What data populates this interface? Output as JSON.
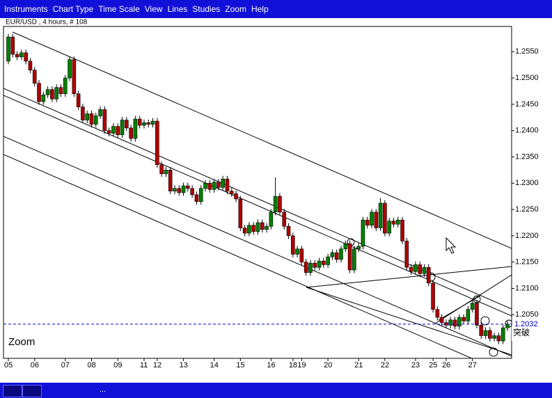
{
  "menu": [
    "Instruments",
    "Chart Type",
    "Time Scale",
    "View",
    "Lines",
    "Studies",
    "Zoom",
    "Help"
  ],
  "status_text": "...",
  "chart_data": {
    "type": "candlestick",
    "title": "EUR/USD , 4 hours, # 108",
    "annotations": [
      "Zoom",
      "突破"
    ],
    "up_color": "#008000",
    "down_color": "#b00000",
    "current_price": 1.2032,
    "ylim": [
      1.1967,
      1.2598
    ],
    "yticks": [
      {
        "value": 1.205,
        "label": "1.2050"
      },
      {
        "value": 1.21,
        "label": "1.2100"
      },
      {
        "value": 1.215,
        "label": "1.2150"
      },
      {
        "value": 1.22,
        "label": "1.2200"
      },
      {
        "value": 1.225,
        "label": "1.2250"
      },
      {
        "value": 1.23,
        "label": "1.2300"
      },
      {
        "value": 1.235,
        "label": "1.2350"
      },
      {
        "value": 1.24,
        "label": "1.2400"
      },
      {
        "value": 1.245,
        "label": "1.2450"
      },
      {
        "value": 1.25,
        "label": "1.2500"
      },
      {
        "value": 1.255,
        "label": "1.2550"
      }
    ],
    "categories": [
      "05",
      null,
      null,
      null,
      null,
      null,
      "06",
      null,
      null,
      null,
      null,
      null,
      null,
      "07",
      null,
      null,
      null,
      null,
      null,
      "08",
      null,
      null,
      null,
      null,
      null,
      "09",
      null,
      null,
      null,
      null,
      null,
      "11",
      null,
      null,
      "12",
      null,
      null,
      null,
      null,
      null,
      "13",
      null,
      null,
      null,
      null,
      null,
      null,
      "14",
      null,
      null,
      null,
      null,
      null,
      "15",
      null,
      null,
      null,
      null,
      null,
      null,
      "16",
      null,
      null,
      null,
      null,
      "18",
      null,
      "19",
      null,
      null,
      null,
      null,
      null,
      "20",
      null,
      null,
      null,
      null,
      null,
      null,
      "21",
      null,
      null,
      null,
      null,
      null,
      "22",
      null,
      null,
      null,
      null,
      null,
      null,
      "23",
      null,
      null,
      null,
      "25",
      null,
      null,
      "26",
      null,
      null,
      null,
      null,
      null,
      "27",
      null,
      null,
      null,
      null,
      null,
      null,
      null,
      null
    ],
    "open": [
      1.2532,
      1.2578,
      1.2545,
      1.254,
      1.2548,
      1.2532,
      1.2515,
      1.249,
      1.2455,
      1.2468,
      1.2478,
      1.246,
      1.2482,
      1.247,
      1.25,
      1.2535,
      1.247,
      1.2445,
      1.242,
      1.2432,
      1.2412,
      1.2428,
      1.244,
      1.24,
      1.2395,
      1.2408,
      1.2392,
      1.242,
      1.2405,
      1.2385,
      1.2422,
      1.241,
      1.2415,
      1.2412,
      1.2418,
      1.2335,
      1.2318,
      1.2325,
      1.2285,
      1.229,
      1.2282,
      1.2295,
      1.229,
      1.2278,
      1.2265,
      1.229,
      1.23,
      1.2288,
      1.2302,
      1.2292,
      1.2308,
      1.2285,
      1.228,
      1.227,
      1.2215,
      1.2205,
      1.222,
      1.2208,
      1.2225,
      1.2212,
      1.2218,
      1.2245,
      1.2275,
      1.2245,
      1.2218,
      1.22,
      1.2165,
      1.2175,
      1.215,
      1.213,
      1.2148,
      1.214,
      1.2152,
      1.2145,
      1.216,
      1.2168,
      1.2155,
      1.2175,
      1.2185,
      1.2135,
      1.2175,
      1.218,
      1.223,
      1.222,
      1.2245,
      1.2215,
      1.2262,
      1.2205,
      1.2228,
      1.2222,
      1.223,
      1.219,
      1.214,
      1.2132,
      1.2145,
      1.2128,
      1.214,
      1.211,
      1.206,
      1.2045,
      1.2035,
      1.203,
      1.204,
      1.2028,
      1.2045,
      1.2038,
      1.206,
      1.2072,
      1.203,
      1.201,
      1.202,
      1.2005,
      1.201,
      1.2,
      1.2025
    ],
    "high": [
      1.2584,
      1.2584,
      1.2551,
      1.2554,
      1.2554,
      1.2538,
      1.2521,
      1.2496,
      1.2474,
      1.2484,
      1.2484,
      1.2488,
      1.2488,
      1.2506,
      1.2541,
      1.2541,
      1.2476,
      1.2451,
      1.2438,
      1.2438,
      1.2434,
      1.2446,
      1.2446,
      1.2406,
      1.2414,
      1.2414,
      1.2426,
      1.2426,
      1.2411,
      1.2428,
      1.2428,
      1.2421,
      1.2421,
      1.2424,
      1.2424,
      1.2341,
      1.2331,
      1.2331,
      1.2296,
      1.2296,
      1.2301,
      1.2301,
      1.2296,
      1.2284,
      1.2296,
      1.2306,
      1.2306,
      1.2308,
      1.2308,
      1.2314,
      1.2314,
      1.2291,
      1.2286,
      1.2276,
      1.2221,
      1.2226,
      1.2226,
      1.2231,
      1.2231,
      1.2224,
      1.2251,
      1.2311,
      1.2281,
      1.2251,
      1.2224,
      1.2206,
      1.2181,
      1.2181,
      1.2156,
      1.2154,
      1.2154,
      1.2158,
      1.2158,
      1.2166,
      1.2174,
      1.2174,
      1.2181,
      1.2191,
      1.2191,
      1.2181,
      1.2186,
      1.2236,
      1.2236,
      1.2251,
      1.2251,
      1.2272,
      1.2268,
      1.2234,
      1.2234,
      1.2236,
      1.2236,
      1.2196,
      1.2146,
      1.2151,
      1.2151,
      1.2146,
      1.2146,
      1.2116,
      1.2066,
      1.2051,
      1.2041,
      1.2046,
      1.2046,
      1.2051,
      1.2051,
      1.2066,
      1.2078,
      1.2078,
      1.2036,
      1.2026,
      1.2026,
      1.2016,
      1.2016,
      1.2031,
      1.2038
    ],
    "low": [
      1.2526,
      1.2539,
      1.2534,
      1.2534,
      1.2526,
      1.2509,
      1.2484,
      1.2449,
      1.2449,
      1.2462,
      1.2454,
      1.2454,
      1.2464,
      1.2464,
      1.2494,
      1.2464,
      1.2439,
      1.2414,
      1.2414,
      1.2406,
      1.2406,
      1.2422,
      1.2394,
      1.2389,
      1.2389,
      1.2386,
      1.2386,
      1.2399,
      1.2379,
      1.2379,
      1.2404,
      1.2404,
      1.2406,
      1.2406,
      1.2329,
      1.2312,
      1.2312,
      1.2279,
      1.2279,
      1.2276,
      1.2276,
      1.2284,
      1.2272,
      1.2259,
      1.2259,
      1.2284,
      1.2282,
      1.2282,
      1.2286,
      1.2286,
      1.2279,
      1.2274,
      1.2264,
      1.2209,
      1.2199,
      1.2199,
      1.2202,
      1.2202,
      1.2206,
      1.2206,
      1.2212,
      1.2239,
      1.2239,
      1.2212,
      1.2194,
      1.2159,
      1.2159,
      1.2144,
      1.2124,
      1.2124,
      1.2134,
      1.2134,
      1.2139,
      1.2139,
      1.2154,
      1.2149,
      1.2149,
      1.2169,
      1.2129,
      1.2129,
      1.2169,
      1.2174,
      1.2214,
      1.2214,
      1.2209,
      1.2209,
      1.2199,
      1.2199,
      1.2216,
      1.2216,
      1.2184,
      1.2134,
      1.2126,
      1.2126,
      1.2122,
      1.2122,
      1.2104,
      1.2054,
      1.2039,
      1.2029,
      1.2024,
      1.2024,
      1.2022,
      1.2022,
      1.2032,
      1.2032,
      1.2054,
      1.2024,
      1.2004,
      1.2004,
      1.1999,
      1.1999,
      1.1994,
      1.1994,
      1.2019
    ],
    "close": [
      1.2578,
      1.2545,
      1.254,
      1.2548,
      1.2532,
      1.2515,
      1.249,
      1.2455,
      1.2468,
      1.2478,
      1.246,
      1.2482,
      1.247,
      1.25,
      1.2535,
      1.247,
      1.2445,
      1.242,
      1.2432,
      1.2412,
      1.2428,
      1.244,
      1.24,
      1.2395,
      1.2408,
      1.2392,
      1.242,
      1.2405,
      1.2385,
      1.2422,
      1.241,
      1.2415,
      1.2412,
      1.2418,
      1.2335,
      1.2318,
      1.2325,
      1.2285,
      1.229,
      1.2282,
      1.2295,
      1.229,
      1.2278,
      1.2265,
      1.229,
      1.23,
      1.2288,
      1.2302,
      1.2292,
      1.2308,
      1.2285,
      1.228,
      1.227,
      1.2215,
      1.2205,
      1.222,
      1.2208,
      1.2225,
      1.2212,
      1.2218,
      1.2245,
      1.2275,
      1.2245,
      1.2218,
      1.22,
      1.2165,
      1.2175,
      1.215,
      1.213,
      1.2148,
      1.214,
      1.2152,
      1.2145,
      1.216,
      1.2168,
      1.2155,
      1.2175,
      1.2185,
      1.2135,
      1.2175,
      1.218,
      1.223,
      1.222,
      1.2245,
      1.2215,
      1.2262,
      1.2205,
      1.2228,
      1.2222,
      1.223,
      1.219,
      1.214,
      1.2132,
      1.2145,
      1.2128,
      1.214,
      1.211,
      1.206,
      1.2045,
      1.2035,
      1.203,
      1.204,
      1.2028,
      1.2045,
      1.2038,
      1.206,
      1.2072,
      1.203,
      1.201,
      1.202,
      1.2005,
      1.201,
      1.2,
      1.2025,
      1.2032
    ]
  }
}
